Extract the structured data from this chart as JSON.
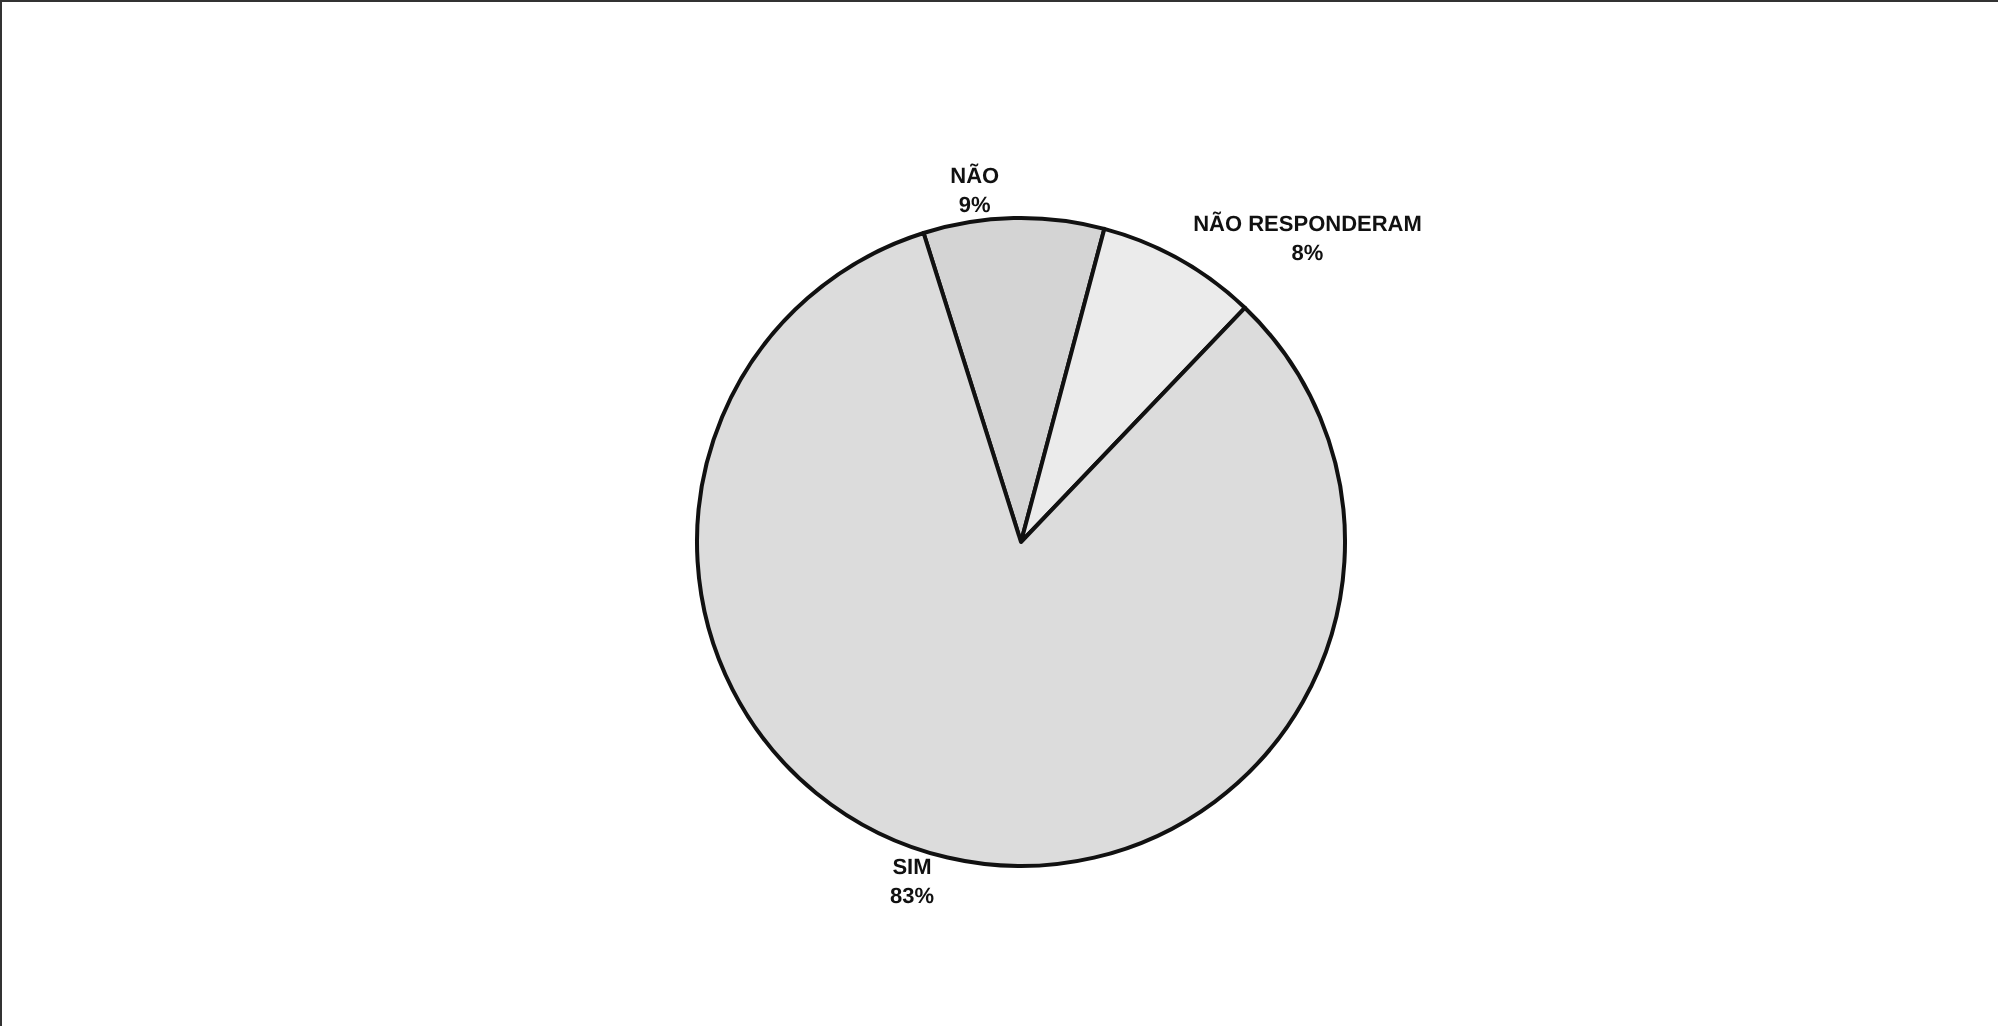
{
  "chart_data": {
    "type": "pie",
    "categories": [
      "NÃO",
      "NÃO RESPONDERAM",
      "SIM"
    ],
    "values": [
      9,
      8,
      83
    ],
    "value_labels": [
      "9%",
      "8%",
      "83%"
    ],
    "colors": [
      "#d4d4d4",
      "#ebebeb",
      "#dcdcdc"
    ],
    "legend": false
  }
}
